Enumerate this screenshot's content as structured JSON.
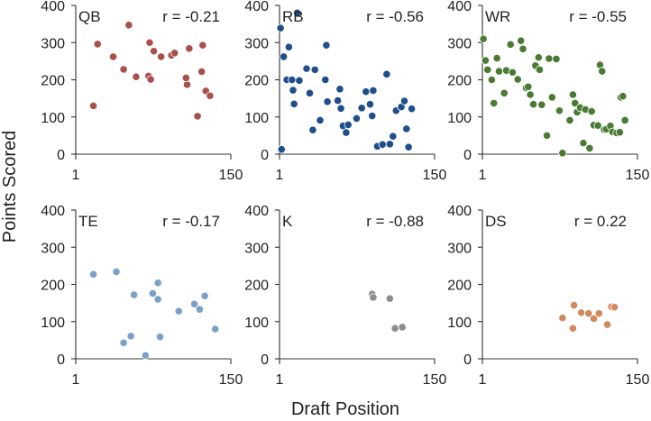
{
  "chart_data": {
    "type": "scatter",
    "xlabel": "Draft Position",
    "ylabel": "Points Scored",
    "xticks": [
      "1",
      "150"
    ],
    "yticks": [
      "0",
      "100",
      "200",
      "300",
      "400"
    ],
    "xlim": [
      1,
      150
    ],
    "ylim": [
      0,
      400
    ],
    "grid": false,
    "panels": [
      {
        "name": "QB",
        "r_label": "r = -0.21",
        "color": "#a8504b",
        "points": [
          [
            18,
            130
          ],
          [
            22,
            296
          ],
          [
            37,
            262
          ],
          [
            47,
            228
          ],
          [
            52,
            347
          ],
          [
            59,
            208
          ],
          [
            71,
            210
          ],
          [
            72,
            300
          ],
          [
            73,
            201
          ],
          [
            76,
            277
          ],
          [
            83,
            262
          ],
          [
            93,
            266
          ],
          [
            96,
            272
          ],
          [
            110,
            284
          ],
          [
            108,
            187
          ],
          [
            107,
            205
          ],
          [
            118,
            102
          ],
          [
            123,
            293
          ],
          [
            122,
            222
          ],
          [
            126,
            170
          ],
          [
            130,
            157
          ]
        ]
      },
      {
        "name": "RB",
        "r_label": "r = -0.56",
        "color": "#1f4e8c",
        "points": [
          [
            2,
            339
          ],
          [
            3,
            13
          ],
          [
            5,
            262
          ],
          [
            8,
            200
          ],
          [
            10,
            288
          ],
          [
            13,
            200
          ],
          [
            14,
            172
          ],
          [
            15,
            135
          ],
          [
            18,
            380
          ],
          [
            20,
            198
          ],
          [
            27,
            230
          ],
          [
            30,
            164
          ],
          [
            33,
            65
          ],
          [
            35,
            227
          ],
          [
            40,
            91
          ],
          [
            45,
            200
          ],
          [
            46,
            293
          ],
          [
            47,
            141
          ],
          [
            57,
            144
          ],
          [
            59,
            175
          ],
          [
            60,
            123
          ],
          [
            62,
            76
          ],
          [
            65,
            58
          ],
          [
            67,
            79
          ],
          [
            75,
            96
          ],
          [
            80,
            124
          ],
          [
            84,
            168
          ],
          [
            88,
            134
          ],
          [
            90,
            103
          ],
          [
            91,
            171
          ],
          [
            95,
            21
          ],
          [
            100,
            26
          ],
          [
            104,
            215
          ],
          [
            107,
            27
          ],
          [
            110,
            48
          ],
          [
            113,
            117
          ],
          [
            118,
            127
          ],
          [
            121,
            143
          ],
          [
            123,
            68
          ],
          [
            125,
            19
          ],
          [
            128,
            122
          ]
        ]
      },
      {
        "name": "WR",
        "r_label": "r = -0.55",
        "color": "#4a7a34",
        "points": [
          [
            2,
            310
          ],
          [
            4,
            252
          ],
          [
            6,
            227
          ],
          [
            10,
            200
          ],
          [
            12,
            137
          ],
          [
            15,
            258
          ],
          [
            17,
            223
          ],
          [
            22,
            164
          ],
          [
            24,
            225
          ],
          [
            28,
            295
          ],
          [
            30,
            220
          ],
          [
            35,
            201
          ],
          [
            38,
            305
          ],
          [
            40,
            283
          ],
          [
            43,
            178
          ],
          [
            45,
            181
          ],
          [
            47,
            160
          ],
          [
            50,
            134
          ],
          [
            52,
            238
          ],
          [
            55,
            260
          ],
          [
            56,
            227
          ],
          [
            58,
            133
          ],
          [
            63,
            50
          ],
          [
            65,
            257
          ],
          [
            68,
            153
          ],
          [
            72,
            256
          ],
          [
            75,
            117
          ],
          [
            78,
            3
          ],
          [
            85,
            91
          ],
          [
            88,
            160
          ],
          [
            90,
            137
          ],
          [
            92,
            113
          ],
          [
            95,
            125
          ],
          [
            98,
            30
          ],
          [
            100,
            120
          ],
          [
            104,
            16
          ],
          [
            106,
            115
          ],
          [
            108,
            78
          ],
          [
            112,
            77
          ],
          [
            114,
            240
          ],
          [
            116,
            223
          ],
          [
            118,
            66
          ],
          [
            120,
            67
          ],
          [
            124,
            76
          ],
          [
            126,
            60
          ],
          [
            130,
            57
          ],
          [
            134,
            153
          ],
          [
            136,
            156
          ],
          [
            138,
            91
          ],
          [
            133,
            59
          ]
        ]
      },
      {
        "name": "TE",
        "r_label": "r = -0.17",
        "color": "#7aa0c8",
        "points": [
          [
            18,
            227
          ],
          [
            40,
            234
          ],
          [
            47,
            43
          ],
          [
            54,
            61
          ],
          [
            57,
            172
          ],
          [
            68,
            9
          ],
          [
            75,
            176
          ],
          [
            80,
            204
          ],
          [
            80,
            160
          ],
          [
            82,
            59
          ],
          [
            100,
            128
          ],
          [
            115,
            147
          ],
          [
            120,
            133
          ],
          [
            125,
            169
          ],
          [
            135,
            80
          ]
        ]
      },
      {
        "name": "K",
        "r_label": "r = -0.88",
        "color": "#8c8c8c",
        "points": [
          [
            90,
            174
          ],
          [
            91,
            165
          ],
          [
            107,
            162
          ],
          [
            112,
            82
          ],
          [
            119,
            85
          ]
        ]
      },
      {
        "name": "DS",
        "r_label": "r = 0.22",
        "color": "#d08a5e",
        "points": [
          [
            78,
            110
          ],
          [
            88,
            82
          ],
          [
            89,
            144
          ],
          [
            96,
            124
          ],
          [
            103,
            122
          ],
          [
            108,
            108
          ],
          [
            113,
            122
          ],
          [
            121,
            92
          ],
          [
            125,
            140
          ],
          [
            128,
            139
          ]
        ]
      }
    ]
  }
}
